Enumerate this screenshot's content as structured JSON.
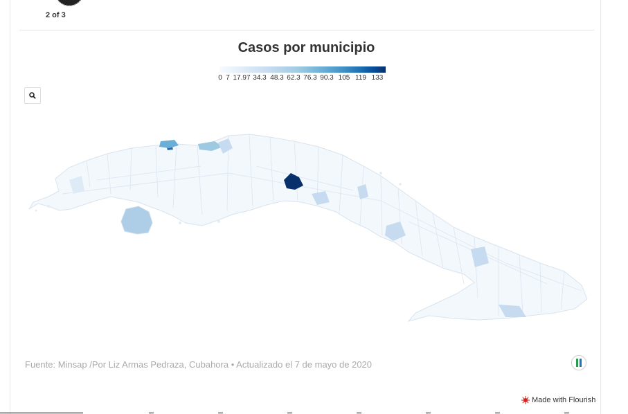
{
  "pager": {
    "label": "2 of 3"
  },
  "title": "Casos por municipio",
  "legend": {
    "ticks": [
      "0",
      "7",
      "17.97",
      "34.3",
      "48.3",
      "62.3",
      "76.3",
      "90.3",
      "105",
      "119",
      "133"
    ],
    "colors": {
      "low": "#f7fbff",
      "high": "#08306b"
    }
  },
  "source": "Fuente: Minsap /Por Liz Armas Pedraza, Cubahora • Actualizado el 7 de mayo de 2020",
  "footer": {
    "made_with": "Made with Flourish"
  },
  "colors": {
    "land": "#f3f8fd",
    "border": "#d8e3ee",
    "accent_dark": "#08519c",
    "medium": "#aecde6"
  }
}
